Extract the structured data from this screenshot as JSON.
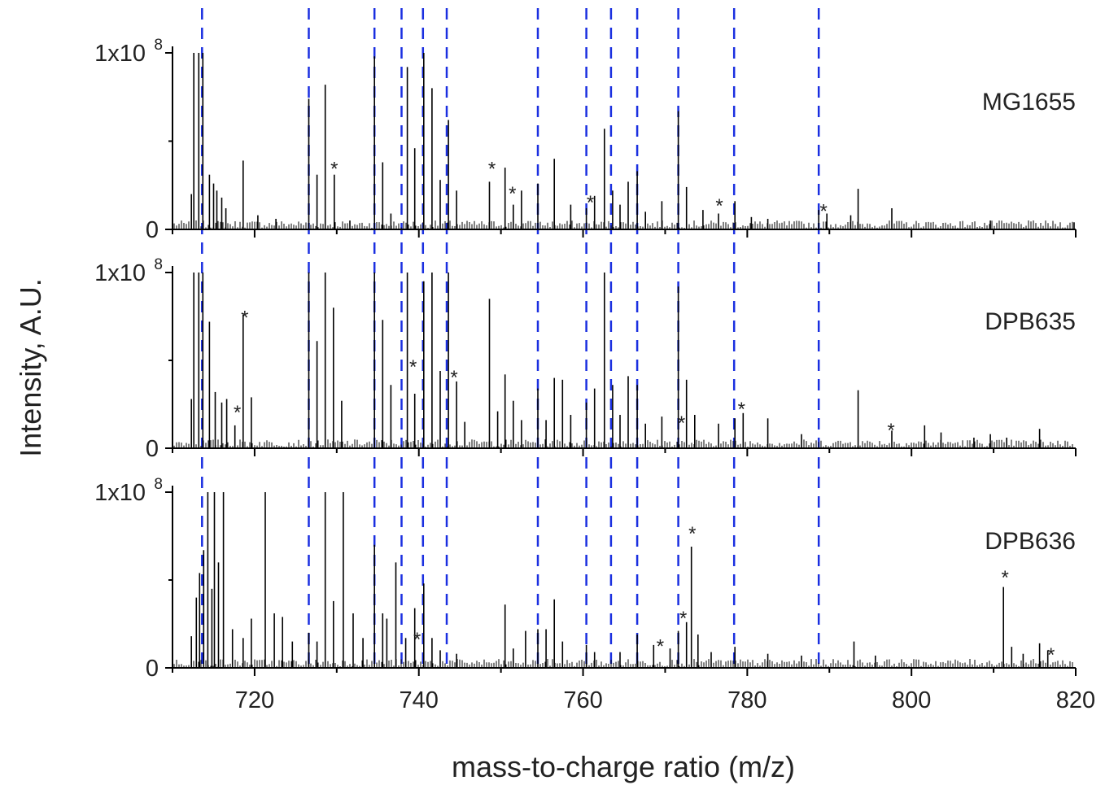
{
  "chart_data": {
    "type": "bar",
    "xlabel": "mass-to-charge ratio (m/z)",
    "ylabel": "Intensity, A.U.",
    "xlim": [
      710,
      820
    ],
    "ylim": [
      0,
      100000000
    ],
    "x_ticks": [
      720,
      740,
      760,
      780,
      800,
      820
    ],
    "x_tick_labels": [
      "720",
      "740",
      "760",
      "780",
      "800",
      "820"
    ],
    "y_top_label_base": "1x10",
    "y_top_label_exp": "8",
    "y_zero_label": "0",
    "annotation_marker": "*",
    "colors": {
      "spectrum": "#000000",
      "reference_lines": "#1a2fe0",
      "markers": "#ff2020"
    },
    "reference_mz": [
      713.6,
      726.6,
      734.6,
      737.9,
      740.5,
      743.4,
      754.5,
      760.4,
      763.4,
      766.6,
      771.6,
      778.4,
      788.7
    ],
    "panels": [
      {
        "name": "MG1655",
        "peaks": [
          {
            "mz": 712.3,
            "i": 20000000
          },
          {
            "mz": 712.6,
            "i": 100000000
          },
          {
            "mz": 713.2,
            "i": 100000000
          },
          {
            "mz": 713.7,
            "i": 100000000
          },
          {
            "mz": 714.5,
            "i": 31000000
          },
          {
            "mz": 715.0,
            "i": 26000000
          },
          {
            "mz": 715.4,
            "i": 22000000
          },
          {
            "mz": 716.0,
            "i": 18000000
          },
          {
            "mz": 716.5,
            "i": 12000000
          },
          {
            "mz": 718.6,
            "i": 39000000
          },
          {
            "mz": 720.4,
            "i": 8000000
          },
          {
            "mz": 722.6,
            "i": 6000000
          },
          {
            "mz": 726.6,
            "i": 74000000
          },
          {
            "mz": 727.6,
            "i": 31000000
          },
          {
            "mz": 728.6,
            "i": 82000000
          },
          {
            "mz": 729.7,
            "i": 31000000
          },
          {
            "mz": 731.6,
            "i": 5000000
          },
          {
            "mz": 734.6,
            "i": 98000000
          },
          {
            "mz": 735.6,
            "i": 38000000
          },
          {
            "mz": 736.6,
            "i": 9000000
          },
          {
            "mz": 738.6,
            "i": 92000000
          },
          {
            "mz": 739.5,
            "i": 46000000
          },
          {
            "mz": 740.6,
            "i": 100000000
          },
          {
            "mz": 741.6,
            "i": 80000000
          },
          {
            "mz": 742.6,
            "i": 28000000
          },
          {
            "mz": 743.6,
            "i": 62000000
          },
          {
            "mz": 744.6,
            "i": 22000000
          },
          {
            "mz": 748.6,
            "i": 27000000
          },
          {
            "mz": 750.5,
            "i": 35000000
          },
          {
            "mz": 751.5,
            "i": 14000000
          },
          {
            "mz": 752.5,
            "i": 22000000
          },
          {
            "mz": 754.5,
            "i": 26000000
          },
          {
            "mz": 756.5,
            "i": 40000000
          },
          {
            "mz": 758.5,
            "i": 14000000
          },
          {
            "mz": 760.4,
            "i": 12000000
          },
          {
            "mz": 761.4,
            "i": 19000000
          },
          {
            "mz": 762.6,
            "i": 57000000
          },
          {
            "mz": 763.6,
            "i": 22000000
          },
          {
            "mz": 764.5,
            "i": 14000000
          },
          {
            "mz": 765.5,
            "i": 27000000
          },
          {
            "mz": 766.6,
            "i": 33000000
          },
          {
            "mz": 767.6,
            "i": 10000000
          },
          {
            "mz": 769.6,
            "i": 16000000
          },
          {
            "mz": 771.6,
            "i": 67000000
          },
          {
            "mz": 772.6,
            "i": 24000000
          },
          {
            "mz": 774.6,
            "i": 11000000
          },
          {
            "mz": 776.5,
            "i": 9000000
          },
          {
            "mz": 778.5,
            "i": 16000000
          },
          {
            "mz": 780.5,
            "i": 7000000
          },
          {
            "mz": 782.5,
            "i": 6000000
          },
          {
            "mz": 788.7,
            "i": 11000000
          },
          {
            "mz": 789.7,
            "i": 9000000
          },
          {
            "mz": 792.6,
            "i": 8000000
          },
          {
            "mz": 793.5,
            "i": 23000000
          },
          {
            "mz": 797.6,
            "i": 12000000
          },
          {
            "mz": 809.6,
            "i": 5000000
          },
          {
            "mz": 819.8,
            "i": 4000000
          }
        ],
        "markers": [
          {
            "mz": 729.7,
            "i": 38000000
          },
          {
            "mz": 748.9,
            "i": 38000000
          },
          {
            "mz": 751.4,
            "i": 24000000
          },
          {
            "mz": 760.9,
            "i": 19000000
          },
          {
            "mz": 776.6,
            "i": 17000000
          },
          {
            "mz": 789.3,
            "i": 14000000
          }
        ]
      },
      {
        "name": "DPB635",
        "peaks": [
          {
            "mz": 712.3,
            "i": 28000000
          },
          {
            "mz": 712.6,
            "i": 100000000
          },
          {
            "mz": 713.2,
            "i": 100000000
          },
          {
            "mz": 713.7,
            "i": 100000000
          },
          {
            "mz": 714.5,
            "i": 72000000
          },
          {
            "mz": 715.2,
            "i": 32000000
          },
          {
            "mz": 716.0,
            "i": 26000000
          },
          {
            "mz": 716.6,
            "i": 28000000
          },
          {
            "mz": 717.6,
            "i": 13000000
          },
          {
            "mz": 718.6,
            "i": 76000000
          },
          {
            "mz": 719.6,
            "i": 29000000
          },
          {
            "mz": 726.6,
            "i": 100000000
          },
          {
            "mz": 727.6,
            "i": 61000000
          },
          {
            "mz": 728.6,
            "i": 100000000
          },
          {
            "mz": 729.6,
            "i": 80000000
          },
          {
            "mz": 730.6,
            "i": 27000000
          },
          {
            "mz": 734.6,
            "i": 100000000
          },
          {
            "mz": 735.6,
            "i": 73000000
          },
          {
            "mz": 736.6,
            "i": 36000000
          },
          {
            "mz": 738.6,
            "i": 100000000
          },
          {
            "mz": 739.5,
            "i": 31000000
          },
          {
            "mz": 740.6,
            "i": 95000000
          },
          {
            "mz": 741.6,
            "i": 100000000
          },
          {
            "mz": 742.6,
            "i": 44000000
          },
          {
            "mz": 743.6,
            "i": 100000000
          },
          {
            "mz": 744.6,
            "i": 38000000
          },
          {
            "mz": 745.6,
            "i": 15000000
          },
          {
            "mz": 748.6,
            "i": 85000000
          },
          {
            "mz": 749.6,
            "i": 21000000
          },
          {
            "mz": 750.5,
            "i": 42000000
          },
          {
            "mz": 751.5,
            "i": 27000000
          },
          {
            "mz": 752.5,
            "i": 16000000
          },
          {
            "mz": 754.5,
            "i": 34000000
          },
          {
            "mz": 755.5,
            "i": 16000000
          },
          {
            "mz": 756.5,
            "i": 40000000
          },
          {
            "mz": 757.5,
            "i": 39000000
          },
          {
            "mz": 758.5,
            "i": 19000000
          },
          {
            "mz": 760.4,
            "i": 26000000
          },
          {
            "mz": 761.4,
            "i": 34000000
          },
          {
            "mz": 762.6,
            "i": 100000000
          },
          {
            "mz": 763.6,
            "i": 36000000
          },
          {
            "mz": 764.5,
            "i": 19000000
          },
          {
            "mz": 765.5,
            "i": 41000000
          },
          {
            "mz": 766.6,
            "i": 36000000
          },
          {
            "mz": 767.6,
            "i": 14000000
          },
          {
            "mz": 769.6,
            "i": 18000000
          },
          {
            "mz": 771.6,
            "i": 92000000
          },
          {
            "mz": 772.6,
            "i": 39000000
          },
          {
            "mz": 773.6,
            "i": 19000000
          },
          {
            "mz": 776.5,
            "i": 14000000
          },
          {
            "mz": 778.5,
            "i": 17000000
          },
          {
            "mz": 779.5,
            "i": 20000000
          },
          {
            "mz": 782.5,
            "i": 17000000
          },
          {
            "mz": 786.6,
            "i": 8000000
          },
          {
            "mz": 793.5,
            "i": 33000000
          },
          {
            "mz": 797.6,
            "i": 10000000
          },
          {
            "mz": 801.6,
            "i": 13000000
          },
          {
            "mz": 803.6,
            "i": 9000000
          },
          {
            "mz": 807.6,
            "i": 6000000
          },
          {
            "mz": 809.6,
            "i": 8000000
          },
          {
            "mz": 811.6,
            "i": 6000000
          },
          {
            "mz": 815.6,
            "i": 11000000
          }
        ],
        "markers": [
          {
            "mz": 718.8,
            "i": 78000000
          },
          {
            "mz": 717.9,
            "i": 24000000
          },
          {
            "mz": 739.3,
            "i": 50000000
          },
          {
            "mz": 744.3,
            "i": 44000000
          },
          {
            "mz": 772.0,
            "i": 18000000
          },
          {
            "mz": 779.3,
            "i": 26000000
          },
          {
            "mz": 797.5,
            "i": 14000000
          }
        ]
      },
      {
        "name": "DPB636",
        "peaks": [
          {
            "mz": 712.3,
            "i": 18000000
          },
          {
            "mz": 712.9,
            "i": 40000000
          },
          {
            "mz": 713.3,
            "i": 54000000
          },
          {
            "mz": 713.8,
            "i": 67000000
          },
          {
            "mz": 714.3,
            "i": 100000000
          },
          {
            "mz": 714.8,
            "i": 45000000
          },
          {
            "mz": 715.1,
            "i": 100000000
          },
          {
            "mz": 715.6,
            "i": 60000000
          },
          {
            "mz": 716.2,
            "i": 100000000
          },
          {
            "mz": 717.3,
            "i": 22000000
          },
          {
            "mz": 718.6,
            "i": 17000000
          },
          {
            "mz": 719.6,
            "i": 28000000
          },
          {
            "mz": 721.3,
            "i": 100000000
          },
          {
            "mz": 722.4,
            "i": 31000000
          },
          {
            "mz": 723.4,
            "i": 29000000
          },
          {
            "mz": 724.6,
            "i": 15000000
          },
          {
            "mz": 726.6,
            "i": 20000000
          },
          {
            "mz": 727.6,
            "i": 15000000
          },
          {
            "mz": 728.6,
            "i": 100000000
          },
          {
            "mz": 729.6,
            "i": 38000000
          },
          {
            "mz": 730.8,
            "i": 100000000
          },
          {
            "mz": 732.0,
            "i": 31000000
          },
          {
            "mz": 733.2,
            "i": 17000000
          },
          {
            "mz": 734.6,
            "i": 70000000
          },
          {
            "mz": 735.6,
            "i": 31000000
          },
          {
            "mz": 736.1,
            "i": 28000000
          },
          {
            "mz": 737.2,
            "i": 60000000
          },
          {
            "mz": 738.4,
            "i": 17000000
          },
          {
            "mz": 739.5,
            "i": 34000000
          },
          {
            "mz": 740.6,
            "i": 48000000
          },
          {
            "mz": 741.6,
            "i": 17000000
          },
          {
            "mz": 742.6,
            "i": 10000000
          },
          {
            "mz": 744.6,
            "i": 8000000
          },
          {
            "mz": 750.5,
            "i": 36000000
          },
          {
            "mz": 751.5,
            "i": 11000000
          },
          {
            "mz": 753.0,
            "i": 21000000
          },
          {
            "mz": 754.5,
            "i": 22000000
          },
          {
            "mz": 755.5,
            "i": 22000000
          },
          {
            "mz": 756.5,
            "i": 39000000
          },
          {
            "mz": 757.5,
            "i": 15000000
          },
          {
            "mz": 760.4,
            "i": 13000000
          },
          {
            "mz": 761.4,
            "i": 9000000
          },
          {
            "mz": 764.5,
            "i": 9000000
          },
          {
            "mz": 766.6,
            "i": 19000000
          },
          {
            "mz": 768.6,
            "i": 13000000
          },
          {
            "mz": 770.6,
            "i": 11000000
          },
          {
            "mz": 771.6,
            "i": 21000000
          },
          {
            "mz": 772.6,
            "i": 26000000
          },
          {
            "mz": 773.2,
            "i": 69000000
          },
          {
            "mz": 774.0,
            "i": 19000000
          },
          {
            "mz": 775.6,
            "i": 9000000
          },
          {
            "mz": 778.5,
            "i": 12000000
          },
          {
            "mz": 782.5,
            "i": 8000000
          },
          {
            "mz": 786.6,
            "i": 7000000
          },
          {
            "mz": 793.0,
            "i": 15000000
          },
          {
            "mz": 795.6,
            "i": 7000000
          },
          {
            "mz": 811.2,
            "i": 46000000
          },
          {
            "mz": 812.2,
            "i": 12000000
          },
          {
            "mz": 813.6,
            "i": 8000000
          },
          {
            "mz": 815.6,
            "i": 14000000
          },
          {
            "mz": 816.6,
            "i": 10000000
          }
        ],
        "markers": [
          {
            "mz": 773.3,
            "i": 80000000
          },
          {
            "mz": 811.4,
            "i": 55000000
          },
          {
            "mz": 739.8,
            "i": 20000000
          },
          {
            "mz": 769.4,
            "i": 16000000
          },
          {
            "mz": 772.2,
            "i": 32000000
          },
          {
            "mz": 817.0,
            "i": 11000000
          }
        ]
      }
    ]
  }
}
